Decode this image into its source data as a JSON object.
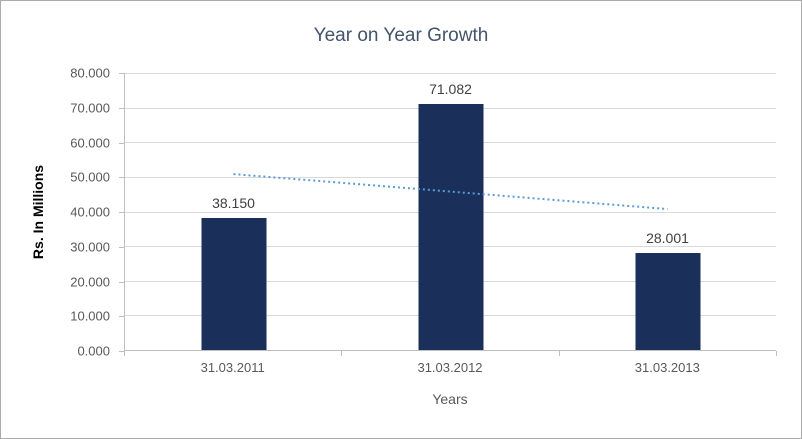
{
  "chart_data": {
    "type": "bar",
    "title": "Year on Year Growth",
    "xlabel": "Years",
    "ylabel": "Rs. In Millions",
    "categories": [
      "31.03.2011",
      "31.03.2012",
      "31.03.2013"
    ],
    "values": [
      38.15,
      71.082,
      28.001
    ],
    "data_labels": [
      "38.150",
      "71.082",
      "28.001"
    ],
    "ylim": [
      0,
      80
    ],
    "ytick_step": 10,
    "ytick_labels": [
      "0.000",
      "10.000",
      "20.000",
      "30.000",
      "40.000",
      "50.000",
      "60.000",
      "70.000",
      "80.000"
    ],
    "grid": true,
    "legend": "none",
    "bar_color": "#1A2F5A",
    "gridline_color": "#d9d9d9",
    "axis_color": "#bfbfbf",
    "label_color": "#404040",
    "tick_label_color": "#595959",
    "title_color": "#44546A",
    "trendline": {
      "type": "linear",
      "style": "dotted",
      "color": "#5B9BD5",
      "start_value": 50.8,
      "end_value": 40.7
    }
  }
}
